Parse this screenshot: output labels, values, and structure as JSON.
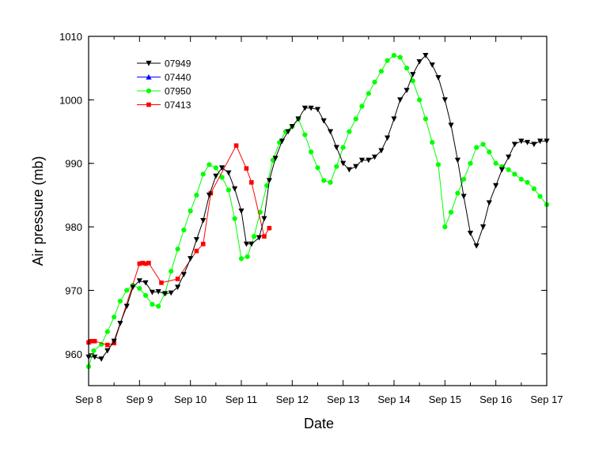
{
  "chart_data": {
    "type": "line",
    "title": "",
    "xlabel": "Date",
    "ylabel": "Air pressure (mb)",
    "xlim": [
      8,
      17
    ],
    "ylim": [
      955,
      1010
    ],
    "x_ticks": [
      8,
      9,
      10,
      11,
      12,
      13,
      14,
      15,
      16,
      17
    ],
    "x_tick_labels": [
      "Sep 8",
      "Sep 9",
      "Sep 10",
      "Sep 11",
      "Sep 12",
      "Sep 13",
      "Sep 14",
      "Sep 15",
      "Sep 16",
      "Sep 17"
    ],
    "y_ticks": [
      960,
      970,
      980,
      990,
      1000,
      1010
    ],
    "y_tick_labels": [
      "960",
      "970",
      "980",
      "990",
      "1000",
      "1010"
    ],
    "grid": false,
    "legend_position": "top-left",
    "series": [
      {
        "name": "07949",
        "color": "#000000",
        "marker": "triangle-down",
        "x": [
          8.0,
          8.12,
          8.25,
          8.37,
          8.5,
          8.62,
          8.75,
          8.87,
          9.0,
          9.12,
          9.25,
          9.37,
          9.5,
          9.62,
          9.75,
          9.87,
          10.0,
          10.12,
          10.25,
          10.37,
          10.5,
          10.62,
          10.75,
          10.87,
          11.0,
          11.1,
          11.2,
          11.35,
          11.45,
          11.55,
          11.67,
          11.8,
          11.92,
          12.0,
          12.12,
          12.25,
          12.37,
          12.5,
          12.62,
          12.75,
          12.87,
          13.0,
          13.12,
          13.25,
          13.37,
          13.5,
          13.62,
          13.75,
          13.87,
          14.0,
          14.12,
          14.25,
          14.37,
          14.5,
          14.62,
          14.75,
          14.87,
          15.0,
          15.12,
          15.25,
          15.37,
          15.5,
          15.62,
          15.75,
          15.87,
          16.0,
          16.12,
          16.25,
          16.37,
          16.5,
          16.62,
          16.75,
          16.87,
          17.0
        ],
        "y": [
          959.5,
          959.5,
          959.2,
          960.5,
          962.0,
          964.8,
          967.5,
          970.5,
          971.5,
          971.2,
          969.7,
          969.8,
          969.5,
          969.6,
          970.5,
          972.5,
          975.0,
          978.0,
          981.0,
          985.0,
          988.0,
          989.3,
          988.5,
          986.0,
          982.5,
          977.3,
          977.3,
          978.3,
          981.3,
          987.3,
          990.8,
          993.5,
          995.0,
          995.8,
          997.0,
          998.7,
          998.7,
          998.5,
          996.7,
          995.0,
          992.5,
          990.0,
          989.0,
          989.5,
          990.5,
          990.5,
          991.0,
          992.0,
          994.0,
          997.0,
          1000.0,
          1001.5,
          1004.0,
          1006.0,
          1007.0,
          1005.5,
          1003.5,
          1000.0,
          996.0,
          990.5,
          984.8,
          979.0,
          977.0,
          980.0,
          983.8,
          986.5,
          989.0,
          991.0,
          993.0,
          993.5,
          993.3,
          993.0,
          993.5,
          993.5
        ]
      },
      {
        "name": "07440",
        "color": "#0000ff",
        "marker": "triangle-up",
        "x": [],
        "y": []
      },
      {
        "name": "07950",
        "color": "#00ff00",
        "marker": "circle",
        "x": [
          8.0,
          8.1,
          8.25,
          8.37,
          8.5,
          8.62,
          8.75,
          8.87,
          9.0,
          9.12,
          9.25,
          9.37,
          9.5,
          9.62,
          9.75,
          9.87,
          10.0,
          10.12,
          10.25,
          10.37,
          10.5,
          10.62,
          10.75,
          10.87,
          11.0,
          11.12,
          11.25,
          11.37,
          11.5,
          11.62,
          11.75,
          11.87,
          12.0,
          12.12,
          12.25,
          12.37,
          12.5,
          12.62,
          12.75,
          12.87,
          13.0,
          13.12,
          13.25,
          13.37,
          13.5,
          13.62,
          13.75,
          13.87,
          14.0,
          14.12,
          14.25,
          14.37,
          14.5,
          14.62,
          14.75,
          14.87,
          15.0,
          15.12,
          15.25,
          15.37,
          15.5,
          15.62,
          15.75,
          15.87,
          16.0,
          16.12,
          16.25,
          16.37,
          16.5,
          16.62,
          16.75,
          16.87,
          17.0
        ],
        "y": [
          958.0,
          960.5,
          961.5,
          963.5,
          965.8,
          968.3,
          970.0,
          970.8,
          970.3,
          969.2,
          967.8,
          967.5,
          969.5,
          973.0,
          976.5,
          979.5,
          982.5,
          985.0,
          988.3,
          989.8,
          989.3,
          987.8,
          985.8,
          981.3,
          975.0,
          975.3,
          978.5,
          982.3,
          986.5,
          990.5,
          993.3,
          995.0,
          995.8,
          997.0,
          994.5,
          991.8,
          989.3,
          987.3,
          987.0,
          989.5,
          992.5,
          995.0,
          997.0,
          999.0,
          1001.0,
          1002.8,
          1004.5,
          1006.2,
          1007.0,
          1006.7,
          1005.0,
          1003.0,
          1000.0,
          997.0,
          993.3,
          989.8,
          980.0,
          982.3,
          985.3,
          987.5,
          990.0,
          992.5,
          993.0,
          991.8,
          990.0,
          989.5,
          989.0,
          988.3,
          987.5,
          987.0,
          986.0,
          984.8,
          983.5
        ]
      },
      {
        "name": "07413",
        "color": "#ff0000",
        "marker": "square",
        "x": [
          8.0,
          8.05,
          8.12,
          8.37,
          8.5,
          9.0,
          9.06,
          9.12,
          9.18,
          9.43,
          9.75,
          10.12,
          10.25,
          10.4,
          10.9,
          11.1,
          11.2,
          11.45,
          11.55
        ],
        "y": [
          961.8,
          962.0,
          962.0,
          961.4,
          961.7,
          974.2,
          974.3,
          974.2,
          974.3,
          971.2,
          971.8,
          976.2,
          977.3,
          985.3,
          992.8,
          989.2,
          987.0,
          978.5,
          979.8
        ]
      }
    ]
  }
}
